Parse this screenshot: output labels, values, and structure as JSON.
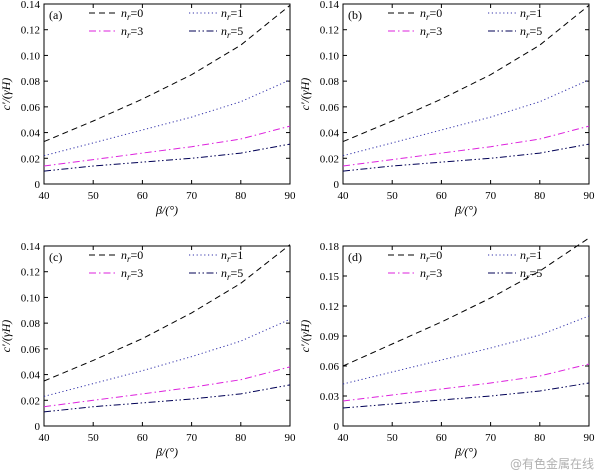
{
  "chart_data": [
    {
      "type": "line",
      "panel_label": "(a)",
      "xlabel": "β/(°)",
      "ylabel": "c'/(γH)",
      "xlim": [
        40,
        90
      ],
      "ylim": [
        0,
        0.14
      ],
      "x": [
        40,
        50,
        60,
        70,
        80,
        90
      ],
      "xticks": [
        "40",
        "50",
        "60",
        "70",
        "80",
        "90"
      ],
      "yticks": [
        "0",
        "0.02",
        "0.04",
        "0.06",
        "0.08",
        "0.10",
        "0.12",
        "0.14"
      ],
      "yticks_values": [
        0,
        0.02,
        0.04,
        0.06,
        0.08,
        0.1,
        0.12,
        0.14
      ],
      "series": [
        {
          "name": "nr=0",
          "name_base": "n",
          "name_sub": "r",
          "name_val": "=0",
          "style": "dashed",
          "color": "#000000",
          "values": [
            0.033,
            0.049,
            0.066,
            0.085,
            0.108,
            0.139
          ]
        },
        {
          "name": "nr=1",
          "name_base": "n",
          "name_sub": "r",
          "name_val": "=1",
          "style": "dotted",
          "color": "#3333aa",
          "values": [
            0.022,
            0.032,
            0.042,
            0.052,
            0.064,
            0.081
          ]
        },
        {
          "name": "nr=3",
          "name_base": "n",
          "name_sub": "r",
          "name_val": "=3",
          "style": "dashdot",
          "color": "#dd22dd",
          "values": [
            0.014,
            0.019,
            0.024,
            0.029,
            0.035,
            0.045
          ]
        },
        {
          "name": "nr=5",
          "name_base": "n",
          "name_sub": "r",
          "name_val": "=5",
          "style": "dashdotdot",
          "color": "#000055",
          "values": [
            0.01,
            0.014,
            0.017,
            0.02,
            0.024,
            0.031
          ]
        }
      ]
    },
    {
      "type": "line",
      "panel_label": "(b)",
      "xlabel": "β/(°)",
      "ylabel": "c'/(γH)",
      "xlim": [
        40,
        90
      ],
      "ylim": [
        0,
        0.14
      ],
      "x": [
        40,
        50,
        60,
        70,
        80,
        90
      ],
      "xticks": [
        "40",
        "50",
        "60",
        "70",
        "80",
        "90"
      ],
      "yticks": [
        "0",
        "0.02",
        "0.04",
        "0.06",
        "0.08",
        "0.10",
        "0.12",
        "0.14"
      ],
      "yticks_values": [
        0,
        0.02,
        0.04,
        0.06,
        0.08,
        0.1,
        0.12,
        0.14
      ],
      "series": [
        {
          "name": "nr=0",
          "name_base": "n",
          "name_sub": "r",
          "name_val": "=0",
          "style": "dashed",
          "color": "#000000",
          "values": [
            0.033,
            0.049,
            0.066,
            0.085,
            0.108,
            0.139
          ]
        },
        {
          "name": "nr=1",
          "name_base": "n",
          "name_sub": "r",
          "name_val": "=1",
          "style": "dotted",
          "color": "#3333aa",
          "values": [
            0.022,
            0.032,
            0.042,
            0.052,
            0.064,
            0.081
          ]
        },
        {
          "name": "nr=3",
          "name_base": "n",
          "name_sub": "r",
          "name_val": "=3",
          "style": "dashdot",
          "color": "#dd22dd",
          "values": [
            0.014,
            0.019,
            0.024,
            0.029,
            0.035,
            0.045
          ]
        },
        {
          "name": "nr=5",
          "name_base": "n",
          "name_sub": "r",
          "name_val": "=5",
          "style": "dashdotdot",
          "color": "#000055",
          "values": [
            0.01,
            0.014,
            0.017,
            0.02,
            0.024,
            0.031
          ]
        }
      ]
    },
    {
      "type": "line",
      "panel_label": "(c)",
      "xlabel": "β/(°)",
      "ylabel": "c'/(γH)",
      "xlim": [
        40,
        90
      ],
      "ylim": [
        0,
        0.14
      ],
      "x": [
        40,
        50,
        60,
        70,
        80,
        90
      ],
      "xticks": [
        "40",
        "50",
        "60",
        "70",
        "80",
        "90"
      ],
      "yticks": [
        "0",
        "0.02",
        "0.04",
        "0.06",
        "0.08",
        "0.10",
        "0.12",
        "0.14"
      ],
      "yticks_values": [
        0,
        0.02,
        0.04,
        0.06,
        0.08,
        0.1,
        0.12,
        0.14
      ],
      "series": [
        {
          "name": "nr=0",
          "name_base": "n",
          "name_sub": "r",
          "name_val": "=0",
          "style": "dashed",
          "color": "#000000",
          "values": [
            0.035,
            0.051,
            0.068,
            0.088,
            0.111,
            0.141
          ]
        },
        {
          "name": "nr=1",
          "name_base": "n",
          "name_sub": "r",
          "name_val": "=1",
          "style": "dotted",
          "color": "#3333aa",
          "values": [
            0.023,
            0.033,
            0.043,
            0.054,
            0.066,
            0.083
          ]
        },
        {
          "name": "nr=3",
          "name_base": "n",
          "name_sub": "r",
          "name_val": "=3",
          "style": "dashdot",
          "color": "#dd22dd",
          "values": [
            0.015,
            0.02,
            0.025,
            0.03,
            0.036,
            0.046
          ]
        },
        {
          "name": "nr=5",
          "name_base": "n",
          "name_sub": "r",
          "name_val": "=5",
          "style": "dashdotdot",
          "color": "#000055",
          "values": [
            0.011,
            0.015,
            0.018,
            0.021,
            0.025,
            0.032
          ]
        }
      ]
    },
    {
      "type": "line",
      "panel_label": "(d)",
      "xlabel": "β/(°)",
      "ylabel": "c'/(γH)",
      "xlim": [
        40,
        90
      ],
      "ylim": [
        0,
        0.18
      ],
      "x": [
        40,
        50,
        60,
        70,
        80,
        90
      ],
      "xticks": [
        "40",
        "50",
        "60",
        "70",
        "80",
        "90"
      ],
      "yticks": [
        "0",
        "0.03",
        "0.06",
        "0.09",
        "0.12",
        "0.15",
        "0.18"
      ],
      "yticks_values": [
        0,
        0.03,
        0.06,
        0.09,
        0.12,
        0.15,
        0.18
      ],
      "series": [
        {
          "name": "nr=0",
          "name_base": "n",
          "name_sub": "r",
          "name_val": "=0",
          "style": "dashed",
          "color": "#000000",
          "values": [
            0.06,
            0.082,
            0.104,
            0.128,
            0.155,
            0.188
          ]
        },
        {
          "name": "nr=1",
          "name_base": "n",
          "name_sub": "r",
          "name_val": "=1",
          "style": "dotted",
          "color": "#3333aa",
          "values": [
            0.042,
            0.054,
            0.066,
            0.078,
            0.091,
            0.11
          ]
        },
        {
          "name": "nr=3",
          "name_base": "n",
          "name_sub": "r",
          "name_val": "=3",
          "style": "dashdot",
          "color": "#dd22dd",
          "values": [
            0.025,
            0.031,
            0.037,
            0.043,
            0.05,
            0.062
          ]
        },
        {
          "name": "nr=5",
          "name_base": "n",
          "name_sub": "r",
          "name_val": "=5",
          "style": "dashdotdot",
          "color": "#000055",
          "values": [
            0.018,
            0.022,
            0.026,
            0.03,
            0.035,
            0.043
          ]
        }
      ]
    }
  ],
  "watermark": "@有色金属在线"
}
